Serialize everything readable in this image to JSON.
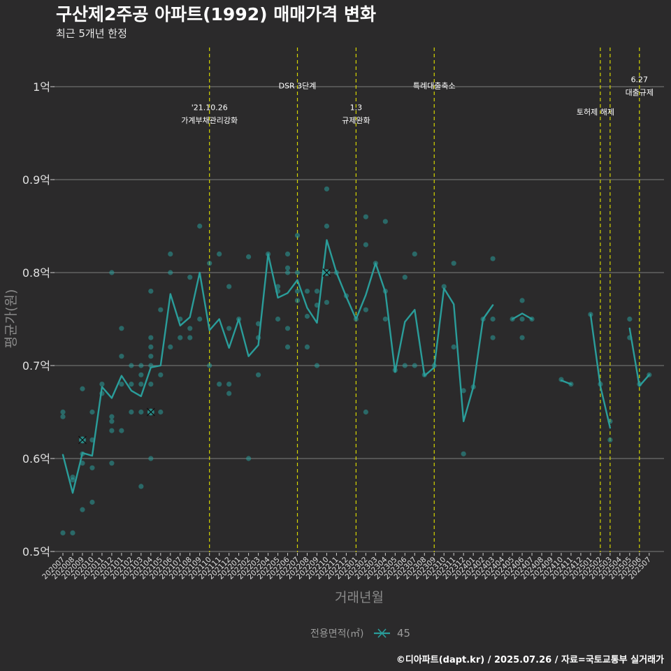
{
  "chart_data": {
    "type": "line",
    "title": "구산제2주공 아파트(1992) 매매가격 변화",
    "subtitle": "최근 5개년 한정",
    "xlabel": "거래년월",
    "ylabel": "평균가(원)",
    "caption": "©디아파트(dapt.kr) / 2025.07.26 / 자료=국토교통부 실거래가",
    "legend_title": "전용면적(㎡)",
    "legend_position": "bottom",
    "grid": true,
    "ylim": [
      0.5,
      1.0
    ],
    "yticks": [
      {
        "value": 0.5,
        "label": "0.5억"
      },
      {
        "value": 0.6,
        "label": "0.6억"
      },
      {
        "value": 0.7,
        "label": "0.7억"
      },
      {
        "value": 0.8,
        "label": "0.8억"
      },
      {
        "value": 0.9,
        "label": "0.9억"
      },
      {
        "value": 1.0,
        "label": "1억"
      }
    ],
    "categories": [
      "202007",
      "202008",
      "202009",
      "202010",
      "202011",
      "202012",
      "202101",
      "202102",
      "202103",
      "202104",
      "202105",
      "202106",
      "202107",
      "202108",
      "202109",
      "202110",
      "202111",
      "202112",
      "202201",
      "202202",
      "202203",
      "202204",
      "202205",
      "202206",
      "202207",
      "202208",
      "202209",
      "202210",
      "202211",
      "202212",
      "202301",
      "202302",
      "202303",
      "202304",
      "202305",
      "202306",
      "202307",
      "202308",
      "202309",
      "202310",
      "202311",
      "202312",
      "202401",
      "202402",
      "202403",
      "202404",
      "202405",
      "202406",
      "202407",
      "202408",
      "202409",
      "202410",
      "202411",
      "202412",
      "202501",
      "202502",
      "202503",
      "202504",
      "202505",
      "202506",
      "202507"
    ],
    "series": [
      {
        "name": "45",
        "color": "#2a9d9a",
        "values": [
          0.604,
          0.563,
          0.606,
          0.603,
          0.677,
          0.665,
          0.689,
          0.673,
          0.667,
          0.698,
          0.7,
          0.777,
          0.743,
          0.752,
          0.8,
          0.738,
          0.75,
          0.719,
          0.75,
          0.71,
          0.722,
          0.82,
          0.773,
          0.778,
          0.792,
          0.762,
          0.746,
          0.835,
          0.8,
          0.774,
          0.75,
          0.776,
          0.81,
          0.779,
          0.693,
          0.747,
          0.76,
          0.689,
          0.698,
          0.783,
          0.766,
          0.64,
          0.677,
          0.75,
          0.765,
          null,
          0.75,
          0.756,
          0.75,
          null,
          null,
          0.684,
          0.68,
          null,
          0.755,
          0.678,
          0.633,
          null,
          0.74,
          0.678,
          0.69
        ]
      }
    ],
    "points": [
      {
        "x": "202007",
        "y": 0.645
      },
      {
        "x": "202007",
        "y": 0.65
      },
      {
        "x": "202007",
        "y": 0.52
      },
      {
        "x": "202008",
        "y": 0.58
      },
      {
        "x": "202008",
        "y": 0.577
      },
      {
        "x": "202008",
        "y": 0.52
      },
      {
        "x": "202009",
        "y": 0.675
      },
      {
        "x": "202009",
        "y": 0.62
      },
      {
        "x": "202009",
        "y": 0.605
      },
      {
        "x": "202009",
        "y": 0.595
      },
      {
        "x": "202009",
        "y": 0.545
      },
      {
        "x": "202010",
        "y": 0.65
      },
      {
        "x": "202010",
        "y": 0.62
      },
      {
        "x": "202010",
        "y": 0.59
      },
      {
        "x": "202010",
        "y": 0.553
      },
      {
        "x": "202011",
        "y": 0.68
      },
      {
        "x": "202011",
        "y": 0.67
      },
      {
        "x": "202012",
        "y": 0.8
      },
      {
        "x": "202012",
        "y": 0.645
      },
      {
        "x": "202012",
        "y": 0.64
      },
      {
        "x": "202012",
        "y": 0.63
      },
      {
        "x": "202012",
        "y": 0.595
      },
      {
        "x": "202101",
        "y": 0.74
      },
      {
        "x": "202101",
        "y": 0.71
      },
      {
        "x": "202101",
        "y": 0.68
      },
      {
        "x": "202101",
        "y": 0.63
      },
      {
        "x": "202102",
        "y": 0.7
      },
      {
        "x": "202102",
        "y": 0.68
      },
      {
        "x": "202102",
        "y": 0.65
      },
      {
        "x": "202103",
        "y": 0.7
      },
      {
        "x": "202103",
        "y": 0.69
      },
      {
        "x": "202103",
        "y": 0.68
      },
      {
        "x": "202103",
        "y": 0.65
      },
      {
        "x": "202103",
        "y": 0.57
      },
      {
        "x": "202104",
        "y": 0.78
      },
      {
        "x": "202104",
        "y": 0.73
      },
      {
        "x": "202104",
        "y": 0.72
      },
      {
        "x": "202104",
        "y": 0.71
      },
      {
        "x": "202104",
        "y": 0.7
      },
      {
        "x": "202104",
        "y": 0.68
      },
      {
        "x": "202104",
        "y": 0.65
      },
      {
        "x": "202104",
        "y": 0.6
      },
      {
        "x": "202105",
        "y": 0.76
      },
      {
        "x": "202105",
        "y": 0.69
      },
      {
        "x": "202105",
        "y": 0.65
      },
      {
        "x": "202106",
        "y": 0.82
      },
      {
        "x": "202106",
        "y": 0.8
      },
      {
        "x": "202106",
        "y": 0.72
      },
      {
        "x": "202107",
        "y": 0.75
      },
      {
        "x": "202107",
        "y": 0.73
      },
      {
        "x": "202108",
        "y": 0.795
      },
      {
        "x": "202108",
        "y": 0.74
      },
      {
        "x": "202108",
        "y": 0.73
      },
      {
        "x": "202109",
        "y": 0.85
      },
      {
        "x": "202109",
        "y": 0.75
      },
      {
        "x": "202110",
        "y": 0.81
      },
      {
        "x": "202110",
        "y": 0.7
      },
      {
        "x": "202111",
        "y": 0.82
      },
      {
        "x": "202111",
        "y": 0.68
      },
      {
        "x": "202112",
        "y": 0.785
      },
      {
        "x": "202112",
        "y": 0.74
      },
      {
        "x": "202112",
        "y": 0.68
      },
      {
        "x": "202112",
        "y": 0.67
      },
      {
        "x": "202201",
        "y": 0.75
      },
      {
        "x": "202202",
        "y": 0.817
      },
      {
        "x": "202202",
        "y": 0.6
      },
      {
        "x": "202203",
        "y": 0.745
      },
      {
        "x": "202203",
        "y": 0.73
      },
      {
        "x": "202203",
        "y": 0.69
      },
      {
        "x": "202204",
        "y": 0.82
      },
      {
        "x": "202205",
        "y": 0.785
      },
      {
        "x": "202205",
        "y": 0.78
      },
      {
        "x": "202205",
        "y": 0.75
      },
      {
        "x": "202206",
        "y": 0.82
      },
      {
        "x": "202206",
        "y": 0.805
      },
      {
        "x": "202206",
        "y": 0.8
      },
      {
        "x": "202206",
        "y": 0.74
      },
      {
        "x": "202206",
        "y": 0.72
      },
      {
        "x": "202207",
        "y": 0.84
      },
      {
        "x": "202207",
        "y": 0.8
      },
      {
        "x": "202207",
        "y": 0.78
      },
      {
        "x": "202207",
        "y": 0.77
      },
      {
        "x": "202208",
        "y": 0.78
      },
      {
        "x": "202208",
        "y": 0.753
      },
      {
        "x": "202208",
        "y": 0.72
      },
      {
        "x": "202209",
        "y": 0.78
      },
      {
        "x": "202209",
        "y": 0.765
      },
      {
        "x": "202209",
        "y": 0.7
      },
      {
        "x": "202210",
        "y": 0.89
      },
      {
        "x": "202210",
        "y": 0.85
      },
      {
        "x": "202210",
        "y": 0.8
      },
      {
        "x": "202210",
        "y": 0.768
      },
      {
        "x": "202211",
        "y": 0.8
      },
      {
        "x": "202212",
        "y": 0.775
      },
      {
        "x": "202301",
        "y": 0.75
      },
      {
        "x": "202302",
        "y": 0.86
      },
      {
        "x": "202302",
        "y": 0.83
      },
      {
        "x": "202302",
        "y": 0.76
      },
      {
        "x": "202302",
        "y": 0.65
      },
      {
        "x": "202303",
        "y": 0.81
      },
      {
        "x": "202304",
        "y": 0.855
      },
      {
        "x": "202304",
        "y": 0.78
      },
      {
        "x": "202304",
        "y": 0.75
      },
      {
        "x": "202305",
        "y": 0.695
      },
      {
        "x": "202306",
        "y": 0.795
      },
      {
        "x": "202306",
        "y": 0.7
      },
      {
        "x": "202307",
        "y": 0.82
      },
      {
        "x": "202307",
        "y": 0.7
      },
      {
        "x": "202308",
        "y": 0.69
      },
      {
        "x": "202309",
        "y": 0.7
      },
      {
        "x": "202310",
        "y": 0.785
      },
      {
        "x": "202311",
        "y": 0.81
      },
      {
        "x": "202311",
        "y": 0.72
      },
      {
        "x": "202312",
        "y": 0.673
      },
      {
        "x": "202312",
        "y": 0.605
      },
      {
        "x": "202401",
        "y": 0.677
      },
      {
        "x": "202402",
        "y": 0.75
      },
      {
        "x": "202403",
        "y": 0.815
      },
      {
        "x": "202403",
        "y": 0.75
      },
      {
        "x": "202403",
        "y": 0.73
      },
      {
        "x": "202405",
        "y": 0.75
      },
      {
        "x": "202406",
        "y": 0.77
      },
      {
        "x": "202406",
        "y": 0.75
      },
      {
        "x": "202406",
        "y": 0.73
      },
      {
        "x": "202407",
        "y": 0.75
      },
      {
        "x": "202410",
        "y": 0.685
      },
      {
        "x": "202411",
        "y": 0.68
      },
      {
        "x": "202501",
        "y": 0.755
      },
      {
        "x": "202502",
        "y": 0.68
      },
      {
        "x": "202503",
        "y": 0.64
      },
      {
        "x": "202503",
        "y": 0.62
      },
      {
        "x": "202505",
        "y": 0.75
      },
      {
        "x": "202505",
        "y": 0.73
      },
      {
        "x": "202506",
        "y": 0.68
      },
      {
        "x": "202507",
        "y": 0.69
      }
    ],
    "cross_markers": [
      {
        "x": "202009",
        "y": 0.62
      },
      {
        "x": "202104",
        "y": 0.65
      },
      {
        "x": "202210",
        "y": 0.8
      }
    ],
    "annotations": [
      {
        "at": "202110",
        "lines": [
          "'21.10.26",
          "가계부채관리강화"
        ],
        "text_y": [
          0.975,
          0.961
        ]
      },
      {
        "at": "202207",
        "lines": [
          "DSR 3단계"
        ],
        "text_y": [
          0.998
        ]
      },
      {
        "at": "202301",
        "lines": [
          "1.3",
          "규제완화"
        ],
        "text_y": [
          0.975,
          0.961
        ]
      },
      {
        "at": "202309",
        "lines": [
          "특례대출축소"
        ],
        "text_y": [
          0.998
        ]
      },
      {
        "at": "202502",
        "lines": [
          "토허제 해제"
        ],
        "text_y": [
          0.97
        ],
        "text_at": "202501.5"
      },
      {
        "at": "202503",
        "lines": []
      },
      {
        "at": "202506",
        "lines": [
          "6.27",
          "대출규제"
        ],
        "text_y": [
          1.005,
          0.991
        ]
      }
    ]
  }
}
